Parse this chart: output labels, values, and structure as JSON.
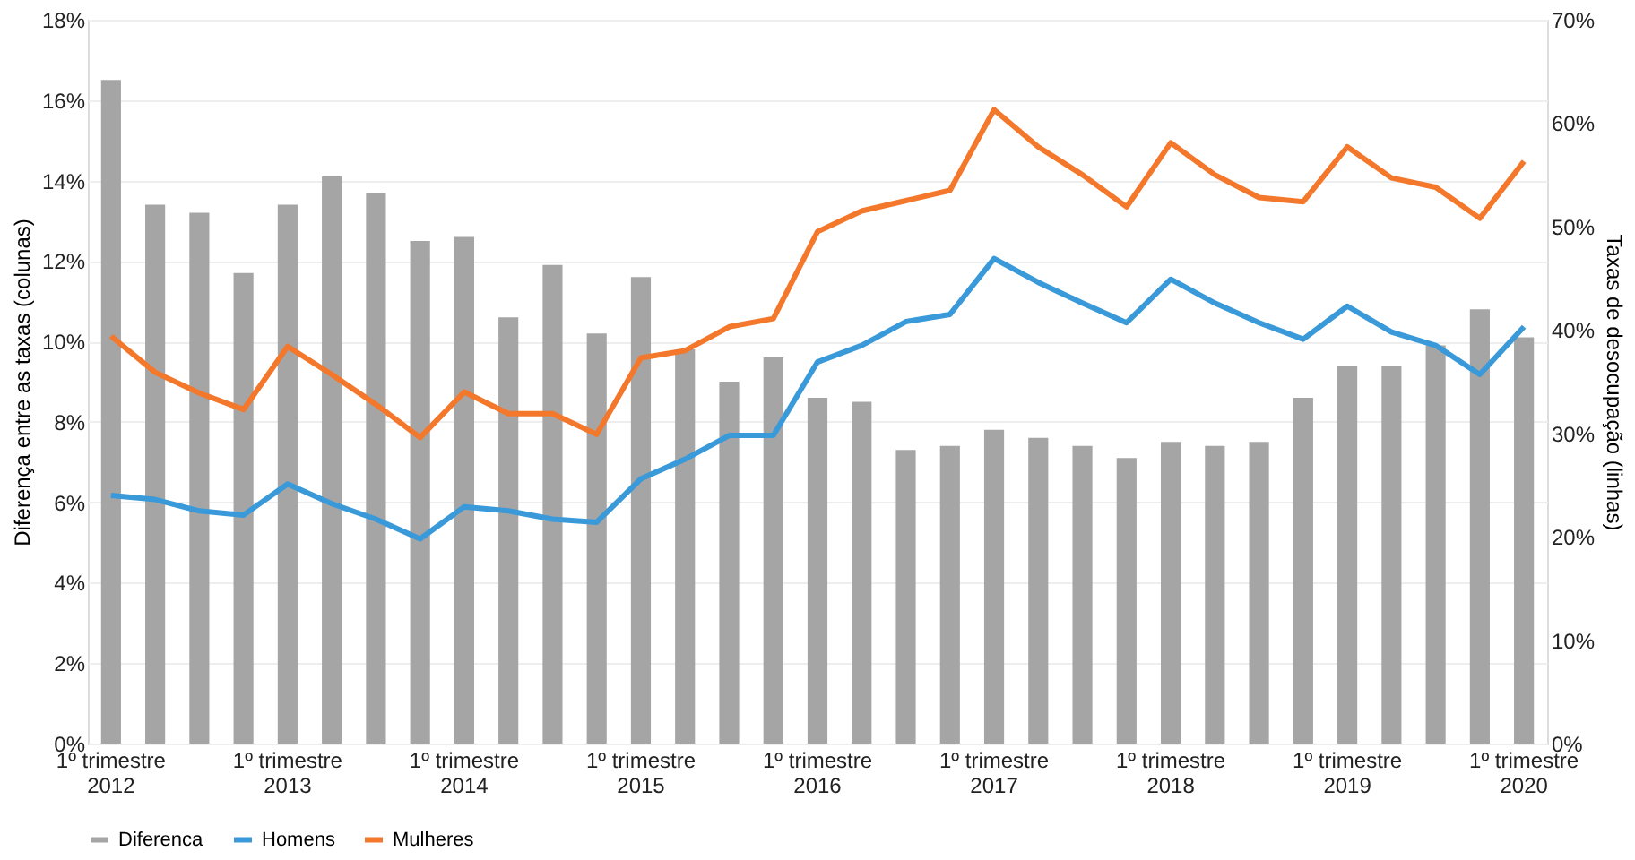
{
  "chart_data": {
    "type": "bar",
    "xlabel": null,
    "ylabel": "Diferença entre as taxas (colunas)",
    "y2label": "Taxas de desocupação (linhas)",
    "categories": [
      "1º trimestre 2012",
      null,
      null,
      null,
      "1º trimestre 2013",
      null,
      null,
      null,
      "1º trimestre 2014",
      null,
      null,
      null,
      "1º trimestre 2015",
      null,
      null,
      null,
      "1º trimestre 2016",
      null,
      null,
      null,
      "1º trimestre 2017",
      null,
      null,
      null,
      "1º trimestre 2018",
      null,
      null,
      null,
      "1º trimestre 2019",
      null,
      null,
      null,
      "1º trimestre 2020"
    ],
    "series": [
      {
        "name": "Diferenca",
        "color": "#a5a5a5",
        "values": [
          16.5,
          13.4,
          13.2,
          11.7,
          13.4,
          14.1,
          13.7,
          12.5,
          12.6,
          10.6,
          11.9,
          10.2,
          11.6,
          9.8,
          9.0,
          9.6,
          8.6,
          8.5,
          7.3,
          7.4,
          7.8,
          7.6,
          7.4,
          7.1,
          7.5,
          7.4,
          7.5,
          8.6,
          9.4,
          9.4,
          9.9,
          10.8,
          10.1
        ]
      },
      {
        "name": "Homens",
        "type": "line",
        "axis": "y2",
        "color": "#3a9ad9",
        "values": [
          24.0,
          23.6,
          22.5,
          22.1,
          25.1,
          23.2,
          21.7,
          19.8,
          22.9,
          22.5,
          21.7,
          21.4,
          25.6,
          27.5,
          29.8,
          29.8,
          36.9,
          38.5,
          40.8,
          41.5,
          46.9,
          44.6,
          42.6,
          40.7,
          44.9,
          42.6,
          40.7,
          39.1,
          42.3,
          39.8,
          38.5,
          35.7,
          40.3
        ]
      },
      {
        "name": "Mulheres",
        "type": "line",
        "axis": "y2",
        "color": "#f4782c",
        "values": [
          39.4,
          35.9,
          33.9,
          32.3,
          38.4,
          35.7,
          32.8,
          29.6,
          34.0,
          31.9,
          31.9,
          29.9,
          37.3,
          38.0,
          40.3,
          41.1,
          49.5,
          51.5,
          52.5,
          53.5,
          61.3,
          57.7,
          55.0,
          51.9,
          58.1,
          55.0,
          52.8,
          52.4,
          57.7,
          54.7,
          53.8,
          50.8,
          56.3
        ]
      }
    ],
    "ylim": [
      0,
      18
    ],
    "yticks": [
      {
        "value": 0,
        "label": "0%"
      },
      {
        "value": 2,
        "label": "2%"
      },
      {
        "value": 4,
        "label": "4%"
      },
      {
        "value": 6,
        "label": "6%"
      },
      {
        "value": 8,
        "label": "8%"
      },
      {
        "value": 10,
        "label": "10%"
      },
      {
        "value": 12,
        "label": "12%"
      },
      {
        "value": 14,
        "label": "14%"
      },
      {
        "value": 16,
        "label": "16%"
      },
      {
        "value": 18,
        "label": "18%"
      }
    ],
    "y2lim": [
      0,
      70
    ],
    "y2ticks": [
      {
        "value": 0,
        "label": "0%"
      },
      {
        "value": 10,
        "label": "10%"
      },
      {
        "value": 20,
        "label": "20%"
      },
      {
        "value": 30,
        "label": "30%"
      },
      {
        "value": 40,
        "label": "40%"
      },
      {
        "value": 50,
        "label": "50%"
      },
      {
        "value": 60,
        "label": "60%"
      },
      {
        "value": 70,
        "label": "70%"
      }
    ],
    "grid": "y",
    "legend": "bottom",
    "marker": "none",
    "line_style": "solid"
  }
}
